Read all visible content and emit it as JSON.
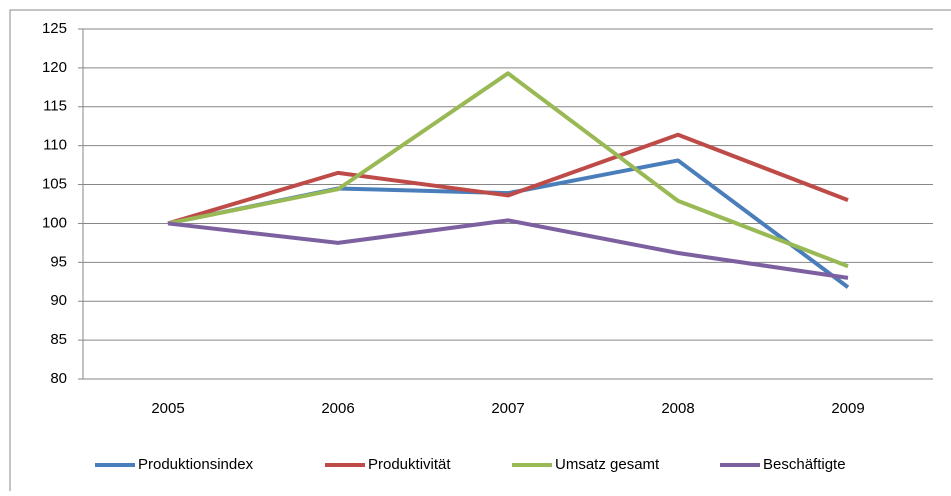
{
  "chart_data": {
    "type": "line",
    "categories": [
      "2005",
      "2006",
      "2007",
      "2008",
      "2009"
    ],
    "series": [
      {
        "name": "Produktionsindex",
        "color": "#4a7ebb",
        "values": [
          100,
          104.5,
          103.9,
          108.1,
          91.8
        ]
      },
      {
        "name": "Produktivität",
        "color": "#be4b48",
        "values": [
          100,
          106.5,
          103.6,
          111.4,
          103.0
        ]
      },
      {
        "name": "Umsatz gesamt",
        "color": "#98b954",
        "values": [
          100,
          104.4,
          119.3,
          102.9,
          94.5
        ]
      },
      {
        "name": "Beschäftigte",
        "color": "#7d60a0",
        "values": [
          100,
          97.5,
          100.4,
          96.2,
          93.0
        ]
      }
    ],
    "ylim": [
      80,
      125
    ],
    "yticks": [
      80,
      85,
      90,
      95,
      100,
      105,
      110,
      115,
      120,
      125
    ],
    "grid": true,
    "legend": "bottom"
  }
}
